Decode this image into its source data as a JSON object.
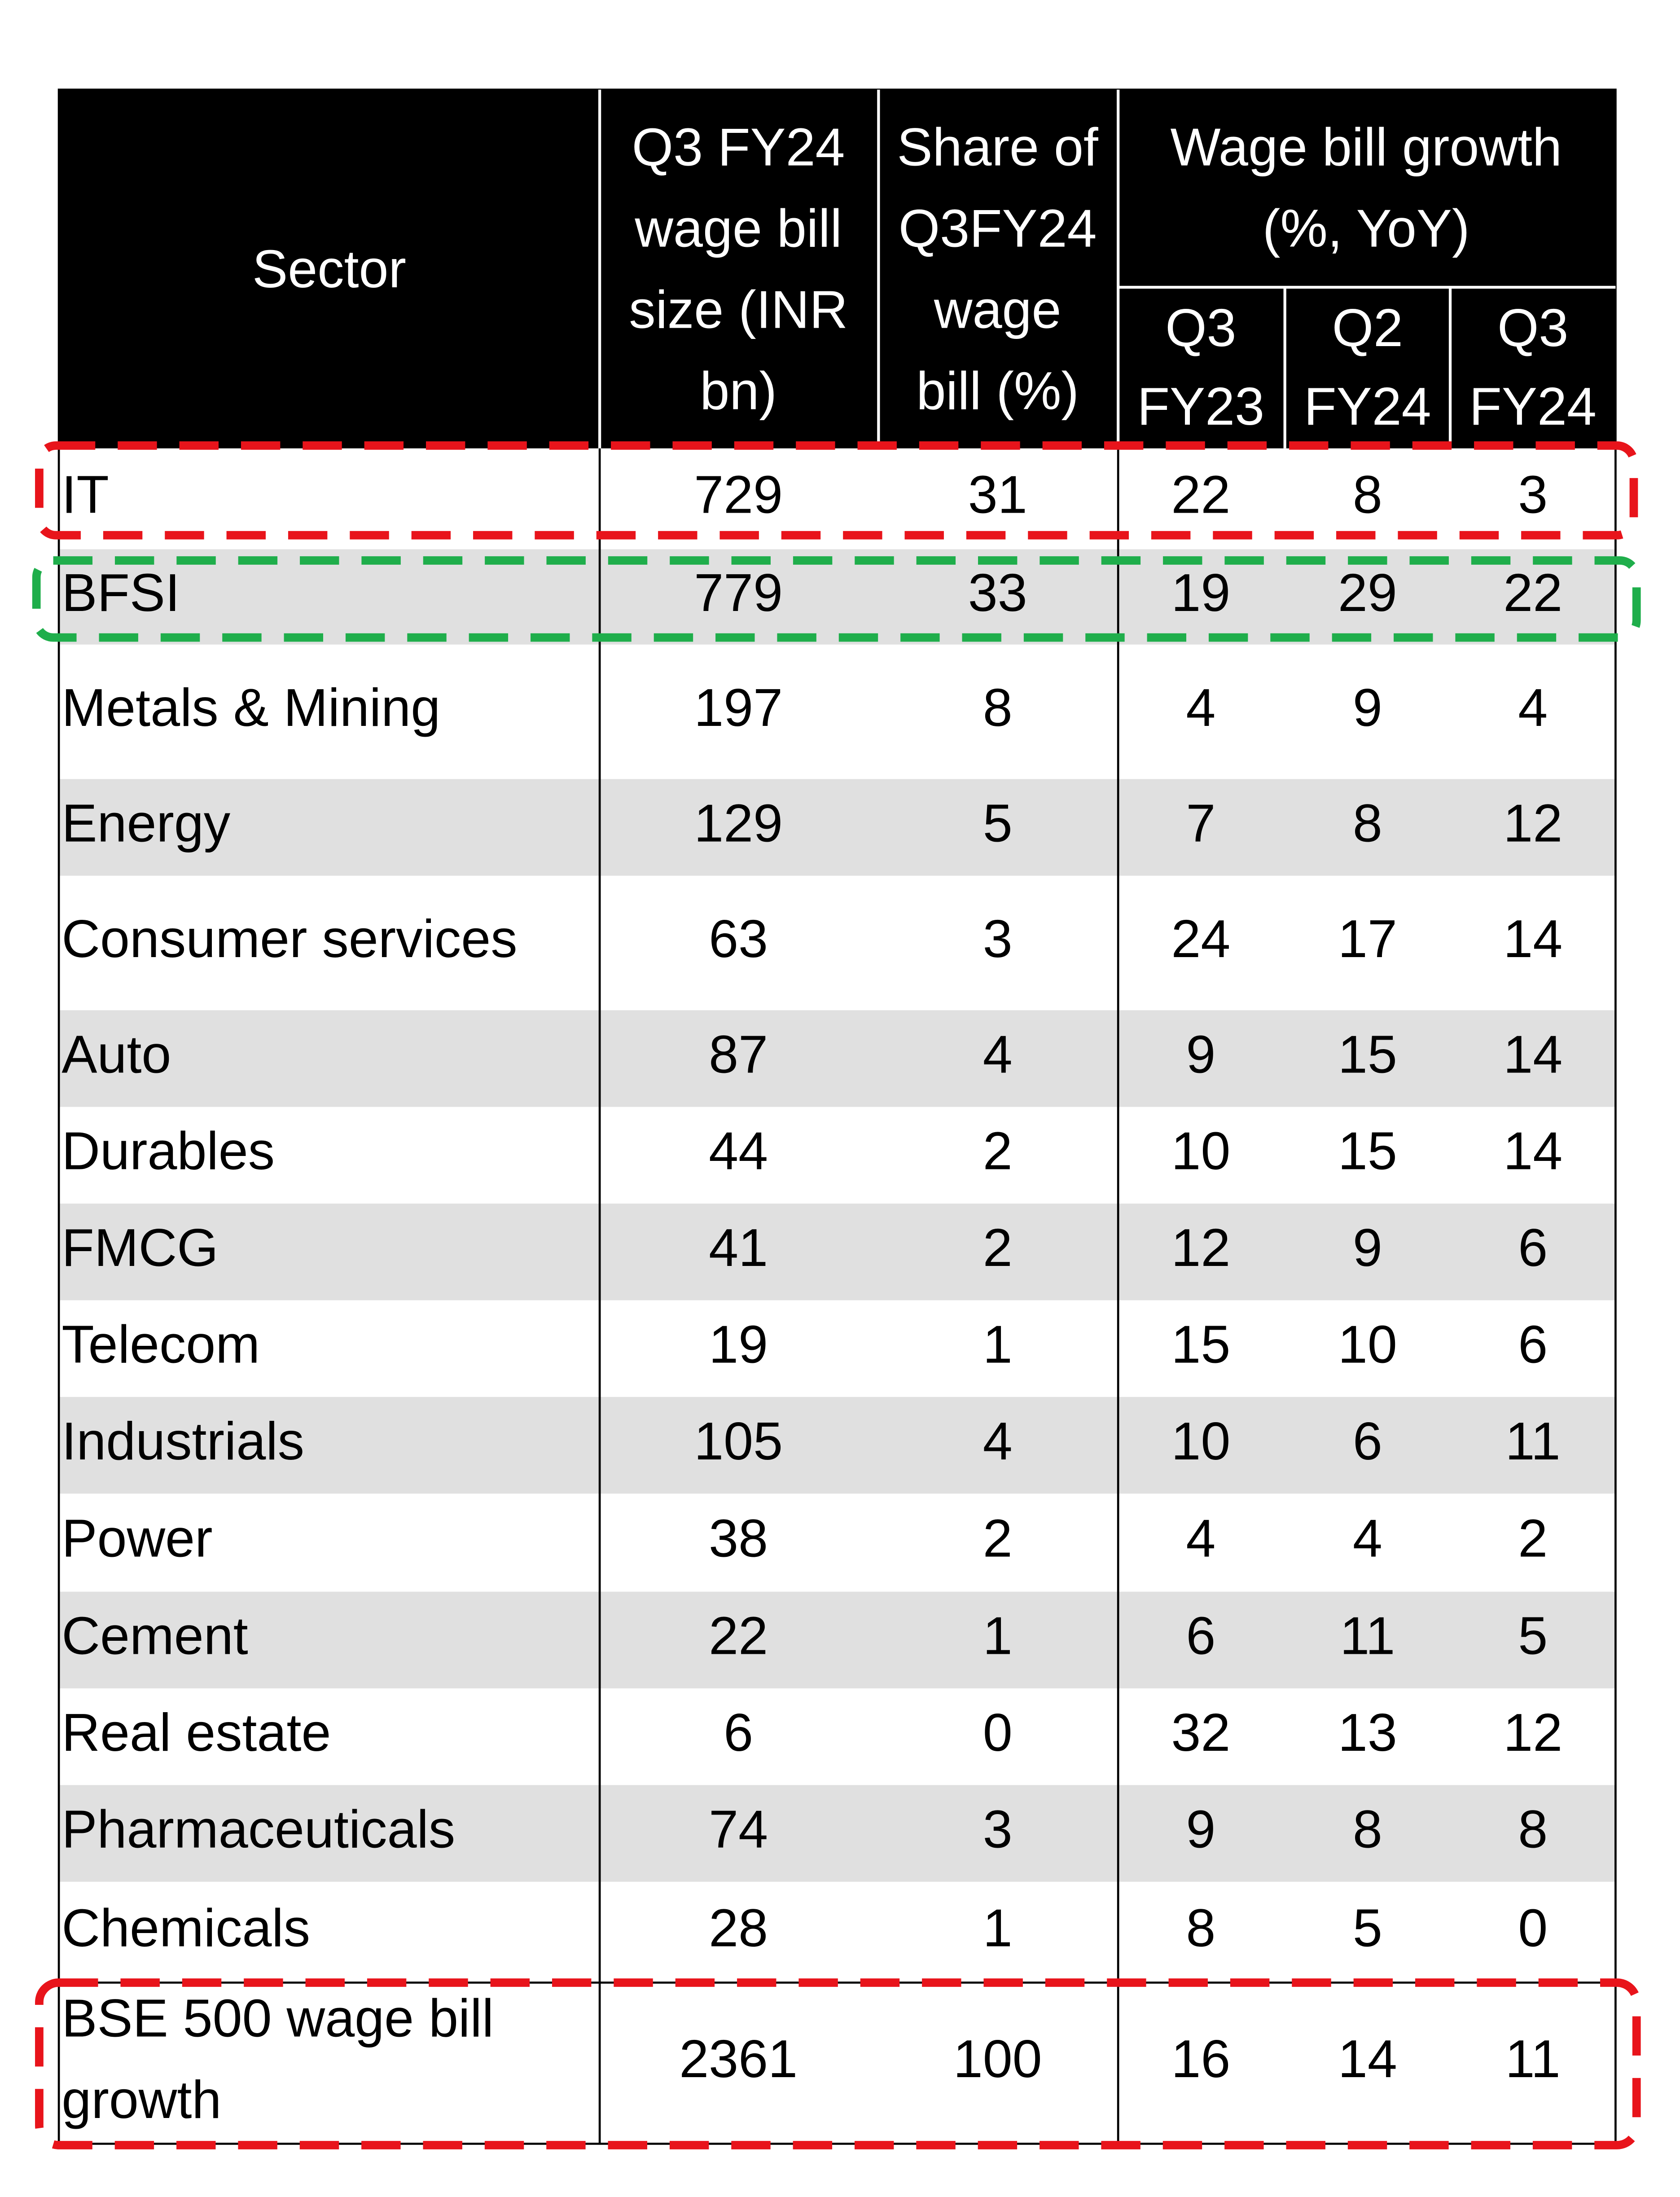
{
  "table": {
    "header": {
      "sector": "Sector",
      "wage_bill_size": [
        "Q3 FY24",
        "wage bill",
        "size (INR",
        "bn)"
      ],
      "share": [
        "Share of",
        "Q3FY24",
        "wage",
        "bill (%)"
      ],
      "growth": [
        "Wage bill growth",
        "(%, YoY)"
      ],
      "growth_columns": [
        [
          "Q3",
          "FY23"
        ],
        [
          "Q2",
          "FY24"
        ],
        [
          "Q3",
          "FY24"
        ]
      ]
    },
    "rows": [
      [
        [
          "IT"
        ],
        729,
        31,
        22,
        8,
        3
      ],
      [
        [
          "BFSI"
        ],
        779,
        33,
        19,
        29,
        22
      ],
      [
        [
          "Metals & Mining"
        ],
        197,
        8,
        4,
        9,
        4
      ],
      [
        [
          "Energy"
        ],
        129,
        5,
        7,
        8,
        12
      ],
      [
        [
          "Consumer services"
        ],
        63,
        3,
        24,
        17,
        14
      ],
      [
        [
          "Auto"
        ],
        87,
        4,
        9,
        15,
        14
      ],
      [
        [
          "Durables"
        ],
        44,
        2,
        10,
        15,
        14
      ],
      [
        [
          "FMCG"
        ],
        41,
        2,
        12,
        9,
        6
      ],
      [
        [
          "Telecom"
        ],
        19,
        1,
        15,
        10,
        6
      ],
      [
        [
          "Industrials"
        ],
        105,
        4,
        10,
        6,
        11
      ],
      [
        [
          "Power"
        ],
        38,
        2,
        4,
        4,
        2
      ],
      [
        [
          "Cement"
        ],
        22,
        1,
        6,
        11,
        5
      ],
      [
        [
          "Real estate"
        ],
        6,
        0,
        32,
        13,
        12
      ],
      [
        [
          "Pharmaceuticals"
        ],
        74,
        3,
        9,
        8,
        8
      ],
      [
        [
          "Chemicals"
        ],
        28,
        1,
        8,
        5,
        0
      ],
      [
        [
          "BSE 500 wage bill",
          "growth"
        ],
        2361,
        100,
        16,
        14,
        11
      ]
    ]
  }
}
